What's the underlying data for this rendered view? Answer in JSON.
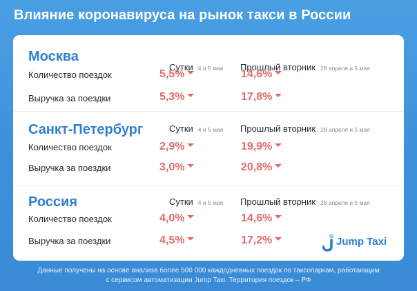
{
  "title": "Влияние коронавируса на рынок такси в России",
  "columns": {
    "day": {
      "label": "Сутки",
      "note": "4 и 5 мая"
    },
    "tuesday": {
      "label": "Прошлый вторник",
      "note": "28 апреля и 5 мая"
    }
  },
  "sections": [
    {
      "name": "Москва",
      "rows": [
        {
          "label": "Количество поездок",
          "day": "5,5%",
          "tuesday": "14,6%"
        },
        {
          "label": "Выручка за поездки",
          "day": "5,3%",
          "tuesday": "17,8%"
        }
      ]
    },
    {
      "name": "Санкт-Петербург",
      "rows": [
        {
          "label": "Количество поездок",
          "day": "2,9%",
          "tuesday": "19,9%"
        },
        {
          "label": "Выручка за поездки",
          "day": "3,0%",
          "tuesday": "20,8%"
        }
      ]
    },
    {
      "name": "Россия",
      "rows": [
        {
          "label": "Количество поездок",
          "day": "4,0%",
          "tuesday": "14,6%"
        },
        {
          "label": "Выручка за поездки",
          "day": "4,5%",
          "tuesday": "17,2%"
        }
      ]
    }
  ],
  "logo": {
    "text": "Jump Taxi"
  },
  "footnote": {
    "line1": "Данные получены на основе анализа более 500 000 каждодневных поездок по таксопаркам, работающим",
    "line2": "с сервисом автоматизации Jump Taxi. Территория поездок – РФ"
  },
  "colors": {
    "accent": "#2f7fd1",
    "decrease": "#e26a6a",
    "background": "#3b8fd9"
  }
}
